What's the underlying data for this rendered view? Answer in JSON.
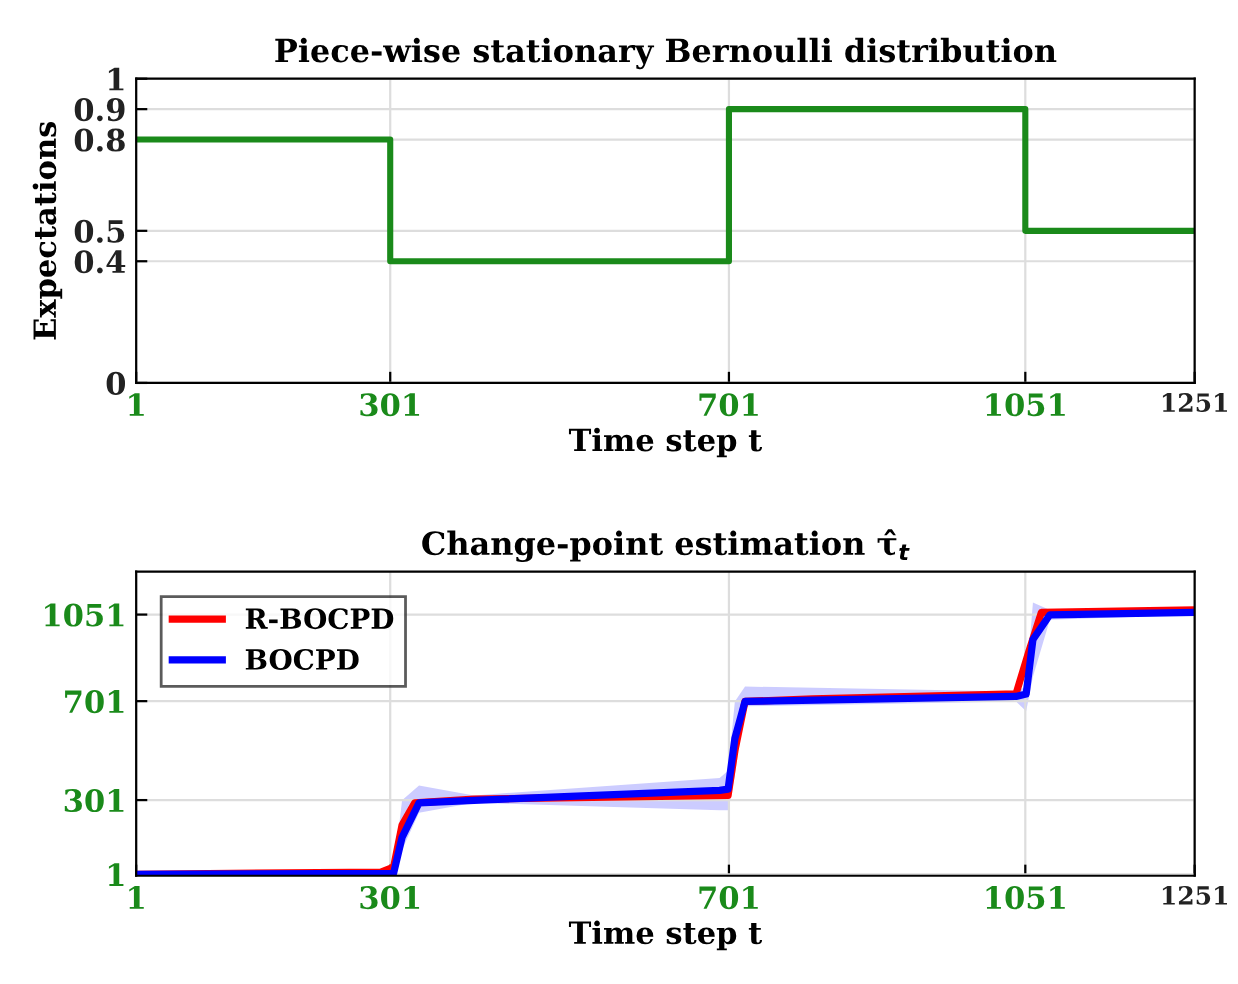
{
  "chart_data": [
    {
      "type": "step",
      "title": "Piece-wise stationary Bernoulli distribution",
      "xlabel": "Time step t",
      "ylabel": "Expectations",
      "x": [
        1,
        301,
        701,
        1051,
        1251
      ],
      "series": [
        {
          "color": "#1a8a1a",
          "values": [
            0.8,
            0.4,
            0.9,
            0.5,
            0.5
          ]
        }
      ],
      "xlim": [
        1,
        1251
      ],
      "xticks": [
        1,
        301,
        701,
        1051,
        1251
      ],
      "ylim": [
        0,
        1
      ],
      "yticks": [
        0,
        0.4,
        0.5,
        0.8,
        0.9,
        1
      ],
      "grid": true,
      "legend": false
    },
    {
      "type": "line",
      "title": "Change-point estimation τ̂$_{t}$",
      "xlabel": "Time step t",
      "series": [
        {
          "name": "R-BOCPD",
          "color": "#ff0000",
          "x": [
            1,
            290,
            305,
            315,
            330,
            400,
            700,
            708,
            720,
            800,
            1040,
            1055,
            1070,
            1251
          ],
          "values": [
            1,
            10,
            30,
            200,
            290,
            305,
            320,
            500,
            700,
            710,
            730,
            900,
            1060,
            1070
          ]
        },
        {
          "name": "BOCPD",
          "color": "#0000ff",
          "x": [
            1,
            305,
            315,
            335,
            400,
            690,
            700,
            708,
            720,
            1040,
            1052,
            1060,
            1080,
            1251
          ],
          "values": [
            1,
            5,
            150,
            290,
            300,
            340,
            345,
            550,
            700,
            720,
            730,
            950,
            1050,
            1060
          ],
          "lower": [
            1,
            1,
            100,
            250,
            290,
            260,
            260,
            400,
            680,
            700,
            660,
            800,
            1030,
            1050
          ],
          "upper": [
            1,
            10,
            300,
            360,
            320,
            390,
            420,
            700,
            760,
            740,
            760,
            1100,
            1070,
            1070
          ]
        }
      ],
      "xlim": [
        1,
        1251
      ],
      "xticks": [
        1,
        301,
        701,
        1051,
        1251
      ],
      "ylim": [
        -5,
        1225
      ],
      "yticks": [
        1,
        301,
        701,
        1051
      ],
      "grid": true,
      "legend": "top left"
    }
  ]
}
